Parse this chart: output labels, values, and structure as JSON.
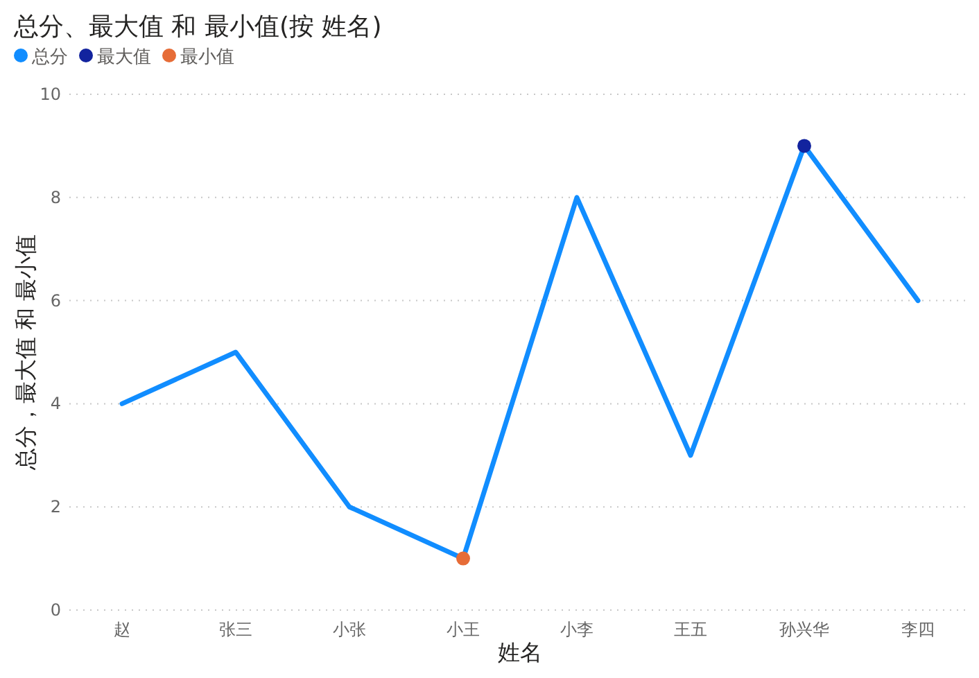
{
  "chart_data": {
    "type": "line",
    "title": "总分、最大值 和 最小值(按 姓名)",
    "xlabel": "姓名",
    "ylabel": "总分，最大值 和 最小值",
    "categories": [
      "赵",
      "张三",
      "小张",
      "小王",
      "小李",
      "王五",
      "孙兴华",
      "李四"
    ],
    "series": [
      {
        "name": "总分",
        "color": "#118dff",
        "values": [
          4,
          5,
          2,
          1,
          8,
          3,
          9,
          6
        ]
      },
      {
        "name": "最大值",
        "type": "scatter",
        "marker": "circle",
        "color": "#12239e",
        "values": [
          null,
          null,
          null,
          null,
          null,
          null,
          9,
          null
        ]
      },
      {
        "name": "最小值",
        "type": "scatter",
        "marker": "circle",
        "color": "#e66c37",
        "values": [
          null,
          null,
          null,
          1,
          null,
          null,
          null,
          null
        ]
      }
    ],
    "ylim": [
      0,
      10
    ],
    "yticks": [
      0,
      2,
      4,
      6,
      8,
      10
    ],
    "grid": "y",
    "legend": "top left"
  }
}
